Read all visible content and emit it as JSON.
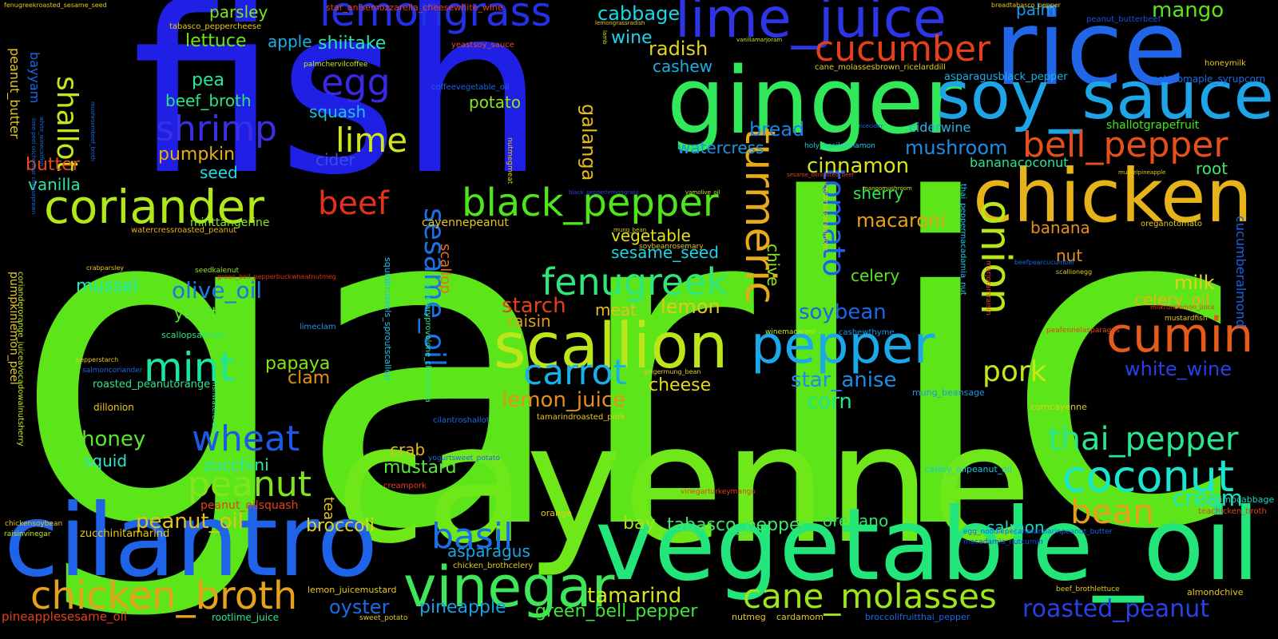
{
  "wordcloud": {
    "background": "#000000",
    "words": [
      {
        "text": "garlic",
        "color": "#5ce619"
      },
      {
        "text": "fish",
        "color": "#1f1fe6"
      },
      {
        "text": "cayenne",
        "color": "#6fe81a"
      },
      {
        "text": "vegetable_oil",
        "color": "#22e67a"
      },
      {
        "text": "cilantro",
        "color": "#1f63e8"
      },
      {
        "text": "rice",
        "color": "#2166e8"
      },
      {
        "text": "ginger",
        "color": "#30e85a"
      },
      {
        "text": "chicken",
        "color": "#e6b31a"
      },
      {
        "text": "soy_sauce",
        "color": "#1fa4e8"
      },
      {
        "text": "coriander",
        "color": "#b0e81a"
      },
      {
        "text": "lime_juice",
        "color": "#2d35e6"
      },
      {
        "text": "scallion",
        "color": "#bde61a"
      },
      {
        "text": "vinegar",
        "color": "#40e65a"
      },
      {
        "text": "lemongrass",
        "color": "#2430e8"
      },
      {
        "text": "pepper",
        "color": "#1aa8e8"
      },
      {
        "text": "black_pepper",
        "color": "#4ee61a"
      },
      {
        "text": "chicken_broth",
        "color": "#e6a31a"
      },
      {
        "text": "coconut",
        "color": "#1ae6d0"
      },
      {
        "text": "cumin",
        "color": "#e65a1a"
      },
      {
        "text": "fenugreek",
        "color": "#2fe67a"
      },
      {
        "text": "cane_molasses",
        "color": "#9ce61a"
      },
      {
        "text": "shrimp",
        "color": "#3a2ee6"
      },
      {
        "text": "cucumber",
        "color": "#e6401a"
      },
      {
        "text": "bell_pepper",
        "color": "#e64f1a"
      },
      {
        "text": "thai_pepper",
        "color": "#2ae68f"
      },
      {
        "text": "carrot",
        "color": "#1ab0e6"
      },
      {
        "text": "peanut",
        "color": "#7ee61a"
      },
      {
        "text": "mint",
        "color": "#1ae6a0"
      },
      {
        "text": "onion",
        "color": "#b8e61a"
      },
      {
        "text": "turmeric",
        "color": "#e6aa1a"
      },
      {
        "text": "roasted_peanut",
        "color": "#2a40e6"
      },
      {
        "text": "basil",
        "color": "#1a6fe6"
      },
      {
        "text": "wheat",
        "color": "#2058e6"
      },
      {
        "text": "egg",
        "color": "#3a28e6"
      },
      {
        "text": "beef",
        "color": "#e6301a"
      },
      {
        "text": "lime",
        "color": "#d0e61a"
      },
      {
        "text": "sesame_oil",
        "color": "#1a72e6"
      },
      {
        "text": "tomato",
        "color": "#1a62e6"
      },
      {
        "text": "shallot",
        "color": "#c6e61a"
      },
      {
        "text": "bean",
        "color": "#e6a01a"
      },
      {
        "text": "pork",
        "color": "#c6e61a"
      },
      {
        "text": "cream",
        "color": "#1ae6c0"
      },
      {
        "text": "mango",
        "color": "#5ae61a"
      },
      {
        "text": "green_bell_pepper",
        "color": "#3ce63a"
      },
      {
        "text": "tamarind",
        "color": "#d6e61a"
      },
      {
        "text": "lemon_juice",
        "color": "#e6901a"
      },
      {
        "text": "star_anise",
        "color": "#1a8ee6"
      },
      {
        "text": "white_wine",
        "color": "#2a3fe6"
      },
      {
        "text": "cinnamon",
        "color": "#d6e61a"
      },
      {
        "text": "soybean",
        "color": "#1a66e6"
      },
      {
        "text": "honey",
        "color": "#5ae62a"
      },
      {
        "text": "olive_oil",
        "color": "#1a78e6"
      },
      {
        "text": "peanut_oil",
        "color": "#e6c01a"
      },
      {
        "text": "galanga",
        "color": "#e6b81a"
      },
      {
        "text": "mushroom",
        "color": "#1a8ee6"
      },
      {
        "text": "oyster",
        "color": "#1a6ce6"
      },
      {
        "text": "pineapple",
        "color": "#1a9ee6"
      },
      {
        "text": "asparagus",
        "color": "#1aa6e6"
      },
      {
        "text": "tabasco_pepper",
        "color": "#40e66a"
      },
      {
        "text": "papaya",
        "color": "#80e61a"
      },
      {
        "text": "sherry",
        "color": "#30e650"
      },
      {
        "text": "cabbage",
        "color": "#1ad6e6"
      },
      {
        "text": "starch",
        "color": "#e6401a"
      },
      {
        "text": "lemon",
        "color": "#e6c81a"
      },
      {
        "text": "macaroni",
        "color": "#e6a01a"
      },
      {
        "text": "milk",
        "color": "#e6d01a"
      },
      {
        "text": "banana",
        "color": "#e6901a"
      },
      {
        "text": "butter",
        "color": "#e64a1a"
      },
      {
        "text": "radish",
        "color": "#e6d41a"
      },
      {
        "text": "cheese",
        "color": "#e6d81a"
      },
      {
        "text": "celery",
        "color": "#5ae61a"
      },
      {
        "text": "celery_oil",
        "color": "#e6b01a"
      },
      {
        "text": "corn",
        "color": "#1ae690"
      },
      {
        "text": "bay",
        "color": "#a0e61a"
      },
      {
        "text": "salmon",
        "color": "#1ad6c6"
      },
      {
        "text": "oregano",
        "color": "#2ae66a"
      },
      {
        "text": "broccoli",
        "color": "#e6d41a"
      },
      {
        "text": "crab",
        "color": "#e6b81a"
      },
      {
        "text": "mustard",
        "color": "#5ae63a"
      },
      {
        "text": "squid",
        "color": "#2ae6c6"
      },
      {
        "text": "zucchini",
        "color": "#2ae6b0"
      },
      {
        "text": "clam",
        "color": "#e6901a"
      },
      {
        "text": "mussel",
        "color": "#1ae6c0"
      },
      {
        "text": "yeast",
        "color": "#5ae62a"
      },
      {
        "text": "vegetable",
        "color": "#e6e01a"
      },
      {
        "text": "sesame_seed",
        "color": "#1ad6e6"
      },
      {
        "text": "raisin",
        "color": "#e69c1a"
      },
      {
        "text": "meat",
        "color": "#e6c01a"
      },
      {
        "text": "nut",
        "color": "#e6901a"
      },
      {
        "text": "chive",
        "color": "#8ce61a"
      },
      {
        "text": "bread",
        "color": "#1a80e6"
      },
      {
        "text": "watercress",
        "color": "#1a98e6"
      },
      {
        "text": "pumpkin",
        "color": "#e6b01a"
      },
      {
        "text": "beef_broth",
        "color": "#2ae680"
      },
      {
        "text": "pea",
        "color": "#2ae69a"
      },
      {
        "text": "squash",
        "color": "#1ac6e6"
      },
      {
        "text": "seed",
        "color": "#2ad6e6"
      },
      {
        "text": "vanilla",
        "color": "#2ae6a0"
      },
      {
        "text": "cider",
        "color": "#3a4ee6"
      },
      {
        "text": "potato",
        "color": "#8ce61a"
      },
      {
        "text": "lettuce",
        "color": "#6ce61a"
      },
      {
        "text": "parsley",
        "color": "#80e61a"
      },
      {
        "text": "apple",
        "color": "#1ab0e6"
      },
      {
        "text": "shiitake",
        "color": "#2ae6b0"
      },
      {
        "text": "wine",
        "color": "#1ad6e6"
      },
      {
        "text": "cashew",
        "color": "#1ab0e6"
      },
      {
        "text": "palm",
        "color": "#1a98e6"
      },
      {
        "text": "root",
        "color": "#40e66a"
      },
      {
        "text": "tea",
        "color": "#e6c81a"
      },
      {
        "text": "scallop",
        "color": "#e6701a"
      },
      {
        "text": "cucumberalmond",
        "color": "#1a62e6"
      },
      {
        "text": "peanut_butter",
        "color": "#e6c81a"
      },
      {
        "text": "bayyam",
        "color": "#1a68e6"
      },
      {
        "text": "minttangerine",
        "color": "#8ce61a"
      },
      {
        "text": "cayennepeanut",
        "color": "#e6c81a"
      },
      {
        "text": "bananacoconut",
        "color": "#2ae690"
      },
      {
        "text": "ciderwine",
        "color": "#2ab0e6"
      },
      {
        "text": "shallotgrapefruit",
        "color": "#40e61a"
      },
      {
        "text": "asparagusblack_pepper",
        "color": "#1ab0e6"
      },
      {
        "text": "potatomaple_syrupcorn",
        "color": "#1a6ce6"
      },
      {
        "text": "peanut_butterbeef",
        "color": "#1a50e6"
      },
      {
        "text": "honeymilk",
        "color": "#e6c81a"
      },
      {
        "text": "holy_basilcinnamon",
        "color": "#1ac6e6"
      },
      {
        "text": "cane_molassesbrown_ricelarddill",
        "color": "#e6c81a"
      },
      {
        "text": "coffeevegetable_oil",
        "color": "#1a62e6"
      },
      {
        "text": "yeastsoy_sauce",
        "color": "#e6501a"
      },
      {
        "text": "palmchervilcoffee",
        "color": "#c6e61a"
      },
      {
        "text": "tabasco_peppercheese",
        "color": "#e6c81a"
      },
      {
        "text": "star_anisemozzarella_cheesewhite_wine",
        "color": "#e6401a"
      },
      {
        "text": "fenugreekroasted_sesame_seed",
        "color": "#e6c81a"
      },
      {
        "text": "breadtabasco_pepper",
        "color": "#e6c81a"
      },
      {
        "text": "lemongrassradish",
        "color": "#e6c81a"
      },
      {
        "text": "vanillamarjoram",
        "color": "#c6e61a"
      },
      {
        "text": "watercressroasted_peanut",
        "color": "#e6b01a"
      },
      {
        "text": "green_bell_pepperbuckwheatnutmeg",
        "color": "#e6301a"
      },
      {
        "text": "sesame_oilroasted_beef",
        "color": "#e6401a"
      },
      {
        "text": "black_pepperlemongrass",
        "color": "#2a40e6"
      },
      {
        "text": "yamolive_oil",
        "color": "#c6e61a"
      },
      {
        "text": "mung_bean",
        "color": "#e6c81a"
      },
      {
        "text": "soybeanrosemary",
        "color": "#e6c81a"
      },
      {
        "text": "seedkalenut",
        "color": "#8ce61a"
      },
      {
        "text": "crabparsley",
        "color": "#e6c81a"
      },
      {
        "text": "pumpkinlemon_peel",
        "color": "#e6c81a"
      },
      {
        "text": "corianderorange_juiceavocadowalnutsherry",
        "color": "#c6e61a"
      },
      {
        "text": "limeclam",
        "color": "#1a98e6"
      },
      {
        "text": "pepperstarch",
        "color": "#e6c81a"
      },
      {
        "text": "salmoncoriander",
        "color": "#1a68e6"
      },
      {
        "text": "roasted_peanutorange",
        "color": "#2ae690"
      },
      {
        "text": "scallopsalmon",
        "color": "#2ae690"
      },
      {
        "text": "dillonion",
        "color": "#e6c81a"
      },
      {
        "text": "raisinvinegar",
        "color": "#c6e61a"
      },
      {
        "text": "zucchinitamarind",
        "color": "#e6c81a"
      },
      {
        "text": "chickensoybean",
        "color": "#e6c81a"
      },
      {
        "text": "rootlime_juice",
        "color": "#2ae690"
      },
      {
        "text": "pineapplesesame_oil",
        "color": "#e6401a"
      },
      {
        "text": "peanut_oilsquash",
        "color": "#e6401a"
      },
      {
        "text": "creampork",
        "color": "#e6401a"
      },
      {
        "text": "yogurtsweet_potato",
        "color": "#1a68e6"
      },
      {
        "text": "vinegarturkeymango",
        "color": "#e6401a"
      },
      {
        "text": "cilantroshallot",
        "color": "#1a68e6"
      },
      {
        "text": "tamarindroasted_pork",
        "color": "#e6c81a"
      },
      {
        "text": "gingermung_bean",
        "color": "#e6c81a"
      },
      {
        "text": "winemacaroni",
        "color": "#c6e61a"
      },
      {
        "text": "cashewthyme",
        "color": "#1a98e6"
      },
      {
        "text": "mung_beansage",
        "color": "#1a98e6"
      },
      {
        "text": "corncayenne",
        "color": "#e6c81a"
      },
      {
        "text": "celery_oilpeanut_oil",
        "color": "#1ac6e6"
      },
      {
        "text": "shrimpcabbage",
        "color": "#1ad6c6"
      },
      {
        "text": "teachicken_broth",
        "color": "#e6401a"
      },
      {
        "text": "egg_noodlepecanmandarinpeanut_butter",
        "color": "#1a68e6"
      },
      {
        "text": "macadamia_nutcumin",
        "color": "#1a40e6"
      },
      {
        "text": "almondchive",
        "color": "#e6c81a"
      },
      {
        "text": "beef_brothlettuce",
        "color": "#e6c81a"
      },
      {
        "text": "chicken_brothcelery",
        "color": "#e6c81a"
      },
      {
        "text": "lemon_juicemustard",
        "color": "#e6c81a"
      },
      {
        "text": "sweet_potato",
        "color": "#e6c81a"
      },
      {
        "text": "broccolifruitthai_pepper",
        "color": "#1a68e6"
      },
      {
        "text": "nutmeg",
        "color": "#e6c81a"
      },
      {
        "text": "cardamom",
        "color": "#e6c81a"
      },
      {
        "text": "orange",
        "color": "#e6c81a"
      },
      {
        "text": "mustardfish",
        "color": "#e6c81a"
      },
      {
        "text": "milkrumlemon_juice",
        "color": "#e6401a"
      },
      {
        "text": "oreganotomato",
        "color": "#e6c81a"
      },
      {
        "text": "beefpearcucumber",
        "color": "#1a68e6"
      },
      {
        "text": "scallionegg",
        "color": "#e6c81a"
      },
      {
        "text": "peafennelasparagus",
        "color": "#e6401a"
      },
      {
        "text": "musselpineapple",
        "color": "#e6c81a"
      },
      {
        "text": "mangomushroom",
        "color": "#c6e61a"
      },
      {
        "text": "coconutcardamom",
        "color": "#e6c81a"
      },
      {
        "text": "thai_peppermacadamia_nut",
        "color": "#1ac6e6"
      },
      {
        "text": "marjoramraisin",
        "color": "#e6401a"
      },
      {
        "text": "ricecider",
        "color": "#1a68e6"
      },
      {
        "text": "nutmegmeat",
        "color": "#e6c81a"
      },
      {
        "text": "rosemaryprovolone_cheesetea",
        "color": "#2ae690"
      },
      {
        "text": "squidbrussels_sproutscallop",
        "color": "#1ac6e6"
      },
      {
        "text": "fishwatercress",
        "color": "#2ae690"
      },
      {
        "text": "lime peel oilcheddar cheeseprawn",
        "color": "#1a68e6"
      },
      {
        "text": "white_winecatfish",
        "color": "#1a68e6"
      },
      {
        "text": "mushroombeef_broth",
        "color": "#1a68e6"
      },
      {
        "text": "lamb",
        "color": "#c6e61a"
      }
    ]
  }
}
